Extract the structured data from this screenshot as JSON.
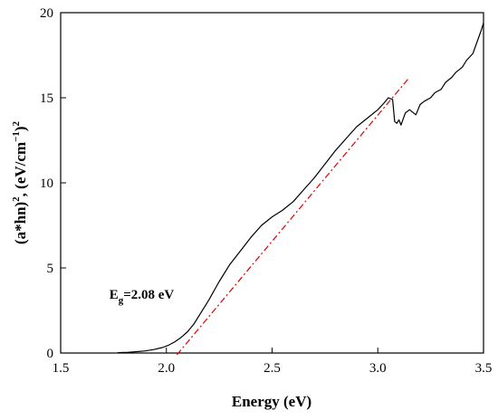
{
  "chart_data": {
    "type": "line",
    "xlabel": "Energy (eV)",
    "ylabel": {
      "part1": "(a*hn)",
      "sup1": "2",
      "part2": ", (eV/cm",
      "sup2": "−1",
      "part3": ")",
      "sup3": "2"
    },
    "xlim": [
      1.5,
      3.5
    ],
    "ylim": [
      0,
      20
    ],
    "x_ticks": [
      "1.5",
      "2.0",
      "2.5",
      "3.0",
      "3.5"
    ],
    "x_tick_values": [
      1.5,
      2.0,
      2.5,
      3.0,
      3.5
    ],
    "y_ticks": [
      "0",
      "5",
      "10",
      "15",
      "20"
    ],
    "y_tick_values": [
      0,
      5,
      10,
      15,
      20
    ],
    "grid": false,
    "annotation": {
      "main": "E",
      "sub": "g",
      "rest": "=2.08 eV",
      "anchor": [
        1.73,
        3.2
      ]
    },
    "series": [
      {
        "color": "#000000",
        "style": "solid",
        "x": [
          1.77,
          1.82,
          1.86,
          1.9,
          1.94,
          1.98,
          2.01,
          2.04,
          2.07,
          2.1,
          2.13,
          2.16,
          2.2,
          2.25,
          2.3,
          2.35,
          2.4,
          2.45,
          2.5,
          2.55,
          2.6,
          2.65,
          2.7,
          2.75,
          2.8,
          2.85,
          2.9,
          2.95,
          3.0,
          3.03,
          3.05,
          3.07,
          3.08,
          3.09,
          3.1,
          3.11,
          3.13,
          3.15,
          3.18,
          3.2,
          3.22,
          3.25,
          3.27,
          3.3,
          3.32,
          3.35,
          3.37,
          3.4,
          3.42,
          3.45,
          3.47,
          3.49,
          3.5
        ],
        "y": [
          0.02,
          0.04,
          0.08,
          0.12,
          0.2,
          0.32,
          0.46,
          0.66,
          0.92,
          1.25,
          1.7,
          2.3,
          3.1,
          4.2,
          5.2,
          6.0,
          6.8,
          7.5,
          8.0,
          8.4,
          8.9,
          9.6,
          10.3,
          11.1,
          11.9,
          12.6,
          13.3,
          13.8,
          14.3,
          14.7,
          15.0,
          14.9,
          13.6,
          13.5,
          13.7,
          13.4,
          14.1,
          14.3,
          14.0,
          14.6,
          14.8,
          15.0,
          15.3,
          15.5,
          15.9,
          16.2,
          16.5,
          16.8,
          17.2,
          17.6,
          18.3,
          19.0,
          19.4
        ]
      },
      {
        "color": "#e00000",
        "style": "dash-dot",
        "x": [
          2.05,
          3.15
        ],
        "y": [
          -0.1,
          16.2
        ]
      }
    ]
  }
}
